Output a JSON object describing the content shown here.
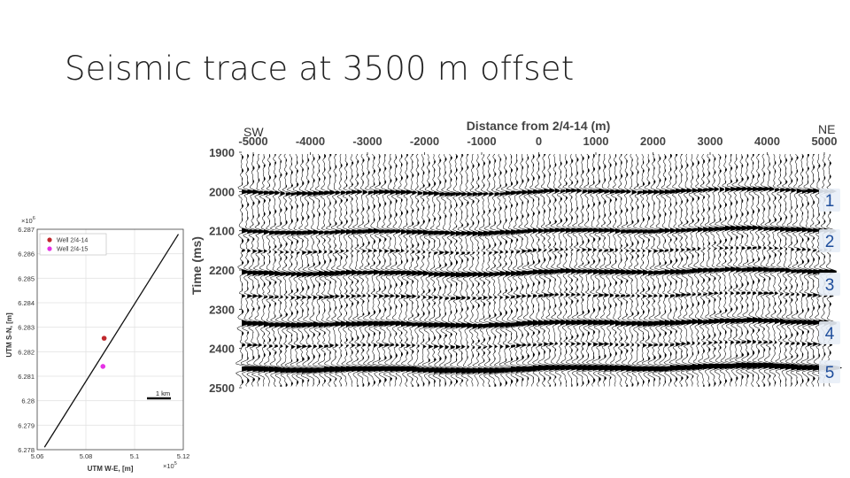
{
  "slide": {
    "title": "Seismic trace at 3500 m offset"
  },
  "map": {
    "xlabel": "UTM W-E, [m]",
    "ylabel": "UTM S-N, [m]",
    "x_exponent_base": "×10",
    "x_exponent_power": "5",
    "y_exponent_base": "×10",
    "y_exponent_power": "6",
    "x_ticks": [
      "5.06",
      "5.08",
      "5.1",
      "5.12"
    ],
    "y_ticks": [
      "6.287",
      "6.286",
      "6.285",
      "6.284",
      "6.283",
      "6.282",
      "6.281",
      "6.28",
      "6.279",
      "6.278"
    ],
    "scale_label": "1 km",
    "legend": [
      {
        "label": "Well 2/4-14",
        "color": "#c0282d"
      },
      {
        "label": "Well 2/4-15",
        "color": "#e532e5"
      }
    ]
  },
  "chart_data": {
    "type": "scatter",
    "xlabel": "UTM W-E, [m]",
    "ylabel": "UTM S-N, [m]",
    "xlim": [
      506000,
      512000
    ],
    "ylim": [
      6278000,
      6287000
    ],
    "grid": true,
    "legend_position": "top-left",
    "series": [
      {
        "name": "Well 2/4-14",
        "x": [
          508750
        ],
        "y": [
          6282550
        ],
        "color": "#c0282d"
      },
      {
        "name": "Well 2/4-15",
        "x": [
          508700
        ],
        "y": [
          6281400
        ],
        "color": "#e532e5"
      }
    ],
    "line": {
      "x": [
        506300,
        511800
      ],
      "y": [
        6278100,
        6286800
      ]
    }
  },
  "seismic": {
    "title": "Distance from 2/4-14 (m)",
    "ylabel": "Time (ms)",
    "x_ticks": [
      "-5000",
      "-4000",
      "-3000",
      "-2000",
      "-1000",
      "0",
      "1000",
      "2000",
      "3000",
      "4000",
      "5000"
    ],
    "y_ticks": [
      "1900",
      "2000",
      "2100",
      "2200",
      "2300",
      "2400",
      "2500"
    ],
    "sw_label": "SW",
    "ne_label": "NE",
    "xlim": [
      -5000,
      5000
    ],
    "ylim": [
      1900,
      2500
    ],
    "reflector_color": "#1f4e9c",
    "reflectors": [
      {
        "label": "1",
        "time": 2020
      },
      {
        "label": "2",
        "time": 2120
      },
      {
        "label": "3",
        "time": 2235
      },
      {
        "label": "4",
        "time": 2360
      },
      {
        "label": "5",
        "time": 2490
      }
    ]
  }
}
